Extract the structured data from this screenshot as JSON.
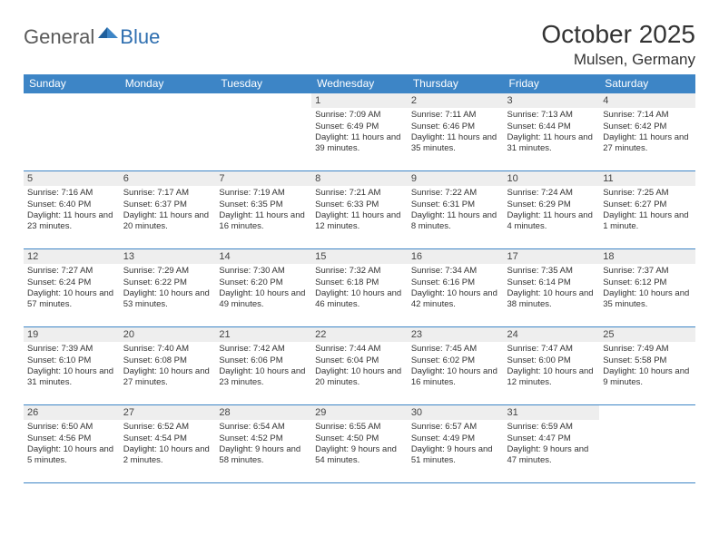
{
  "logo": {
    "general": "General",
    "blue": "Blue"
  },
  "title": "October 2025",
  "location": "Mulsen, Germany",
  "colors": {
    "header_bg": "#3d85c6",
    "header_text": "#ffffff",
    "border": "#3d85c6",
    "daynum_bg": "#eeeeee",
    "text": "#333333",
    "logo_gray": "#5a5a5a",
    "logo_blue": "#2f6fb0"
  },
  "weekdays": [
    "Sunday",
    "Monday",
    "Tuesday",
    "Wednesday",
    "Thursday",
    "Friday",
    "Saturday"
  ],
  "weeks": [
    [
      {
        "blank": true
      },
      {
        "blank": true
      },
      {
        "blank": true
      },
      {
        "day": "1",
        "sunrise": "Sunrise: 7:09 AM",
        "sunset": "Sunset: 6:49 PM",
        "daylight": "Daylight: 11 hours and 39 minutes."
      },
      {
        "day": "2",
        "sunrise": "Sunrise: 7:11 AM",
        "sunset": "Sunset: 6:46 PM",
        "daylight": "Daylight: 11 hours and 35 minutes."
      },
      {
        "day": "3",
        "sunrise": "Sunrise: 7:13 AM",
        "sunset": "Sunset: 6:44 PM",
        "daylight": "Daylight: 11 hours and 31 minutes."
      },
      {
        "day": "4",
        "sunrise": "Sunrise: 7:14 AM",
        "sunset": "Sunset: 6:42 PM",
        "daylight": "Daylight: 11 hours and 27 minutes."
      }
    ],
    [
      {
        "day": "5",
        "sunrise": "Sunrise: 7:16 AM",
        "sunset": "Sunset: 6:40 PM",
        "daylight": "Daylight: 11 hours and 23 minutes."
      },
      {
        "day": "6",
        "sunrise": "Sunrise: 7:17 AM",
        "sunset": "Sunset: 6:37 PM",
        "daylight": "Daylight: 11 hours and 20 minutes."
      },
      {
        "day": "7",
        "sunrise": "Sunrise: 7:19 AM",
        "sunset": "Sunset: 6:35 PM",
        "daylight": "Daylight: 11 hours and 16 minutes."
      },
      {
        "day": "8",
        "sunrise": "Sunrise: 7:21 AM",
        "sunset": "Sunset: 6:33 PM",
        "daylight": "Daylight: 11 hours and 12 minutes."
      },
      {
        "day": "9",
        "sunrise": "Sunrise: 7:22 AM",
        "sunset": "Sunset: 6:31 PM",
        "daylight": "Daylight: 11 hours and 8 minutes."
      },
      {
        "day": "10",
        "sunrise": "Sunrise: 7:24 AM",
        "sunset": "Sunset: 6:29 PM",
        "daylight": "Daylight: 11 hours and 4 minutes."
      },
      {
        "day": "11",
        "sunrise": "Sunrise: 7:25 AM",
        "sunset": "Sunset: 6:27 PM",
        "daylight": "Daylight: 11 hours and 1 minute."
      }
    ],
    [
      {
        "day": "12",
        "sunrise": "Sunrise: 7:27 AM",
        "sunset": "Sunset: 6:24 PM",
        "daylight": "Daylight: 10 hours and 57 minutes."
      },
      {
        "day": "13",
        "sunrise": "Sunrise: 7:29 AM",
        "sunset": "Sunset: 6:22 PM",
        "daylight": "Daylight: 10 hours and 53 minutes."
      },
      {
        "day": "14",
        "sunrise": "Sunrise: 7:30 AM",
        "sunset": "Sunset: 6:20 PM",
        "daylight": "Daylight: 10 hours and 49 minutes."
      },
      {
        "day": "15",
        "sunrise": "Sunrise: 7:32 AM",
        "sunset": "Sunset: 6:18 PM",
        "daylight": "Daylight: 10 hours and 46 minutes."
      },
      {
        "day": "16",
        "sunrise": "Sunrise: 7:34 AM",
        "sunset": "Sunset: 6:16 PM",
        "daylight": "Daylight: 10 hours and 42 minutes."
      },
      {
        "day": "17",
        "sunrise": "Sunrise: 7:35 AM",
        "sunset": "Sunset: 6:14 PM",
        "daylight": "Daylight: 10 hours and 38 minutes."
      },
      {
        "day": "18",
        "sunrise": "Sunrise: 7:37 AM",
        "sunset": "Sunset: 6:12 PM",
        "daylight": "Daylight: 10 hours and 35 minutes."
      }
    ],
    [
      {
        "day": "19",
        "sunrise": "Sunrise: 7:39 AM",
        "sunset": "Sunset: 6:10 PM",
        "daylight": "Daylight: 10 hours and 31 minutes."
      },
      {
        "day": "20",
        "sunrise": "Sunrise: 7:40 AM",
        "sunset": "Sunset: 6:08 PM",
        "daylight": "Daylight: 10 hours and 27 minutes."
      },
      {
        "day": "21",
        "sunrise": "Sunrise: 7:42 AM",
        "sunset": "Sunset: 6:06 PM",
        "daylight": "Daylight: 10 hours and 23 minutes."
      },
      {
        "day": "22",
        "sunrise": "Sunrise: 7:44 AM",
        "sunset": "Sunset: 6:04 PM",
        "daylight": "Daylight: 10 hours and 20 minutes."
      },
      {
        "day": "23",
        "sunrise": "Sunrise: 7:45 AM",
        "sunset": "Sunset: 6:02 PM",
        "daylight": "Daylight: 10 hours and 16 minutes."
      },
      {
        "day": "24",
        "sunrise": "Sunrise: 7:47 AM",
        "sunset": "Sunset: 6:00 PM",
        "daylight": "Daylight: 10 hours and 12 minutes."
      },
      {
        "day": "25",
        "sunrise": "Sunrise: 7:49 AM",
        "sunset": "Sunset: 5:58 PM",
        "daylight": "Daylight: 10 hours and 9 minutes."
      }
    ],
    [
      {
        "day": "26",
        "sunrise": "Sunrise: 6:50 AM",
        "sunset": "Sunset: 4:56 PM",
        "daylight": "Daylight: 10 hours and 5 minutes."
      },
      {
        "day": "27",
        "sunrise": "Sunrise: 6:52 AM",
        "sunset": "Sunset: 4:54 PM",
        "daylight": "Daylight: 10 hours and 2 minutes."
      },
      {
        "day": "28",
        "sunrise": "Sunrise: 6:54 AM",
        "sunset": "Sunset: 4:52 PM",
        "daylight": "Daylight: 9 hours and 58 minutes."
      },
      {
        "day": "29",
        "sunrise": "Sunrise: 6:55 AM",
        "sunset": "Sunset: 4:50 PM",
        "daylight": "Daylight: 9 hours and 54 minutes."
      },
      {
        "day": "30",
        "sunrise": "Sunrise: 6:57 AM",
        "sunset": "Sunset: 4:49 PM",
        "daylight": "Daylight: 9 hours and 51 minutes."
      },
      {
        "day": "31",
        "sunrise": "Sunrise: 6:59 AM",
        "sunset": "Sunset: 4:47 PM",
        "daylight": "Daylight: 9 hours and 47 minutes."
      },
      {
        "blank": true
      }
    ]
  ]
}
